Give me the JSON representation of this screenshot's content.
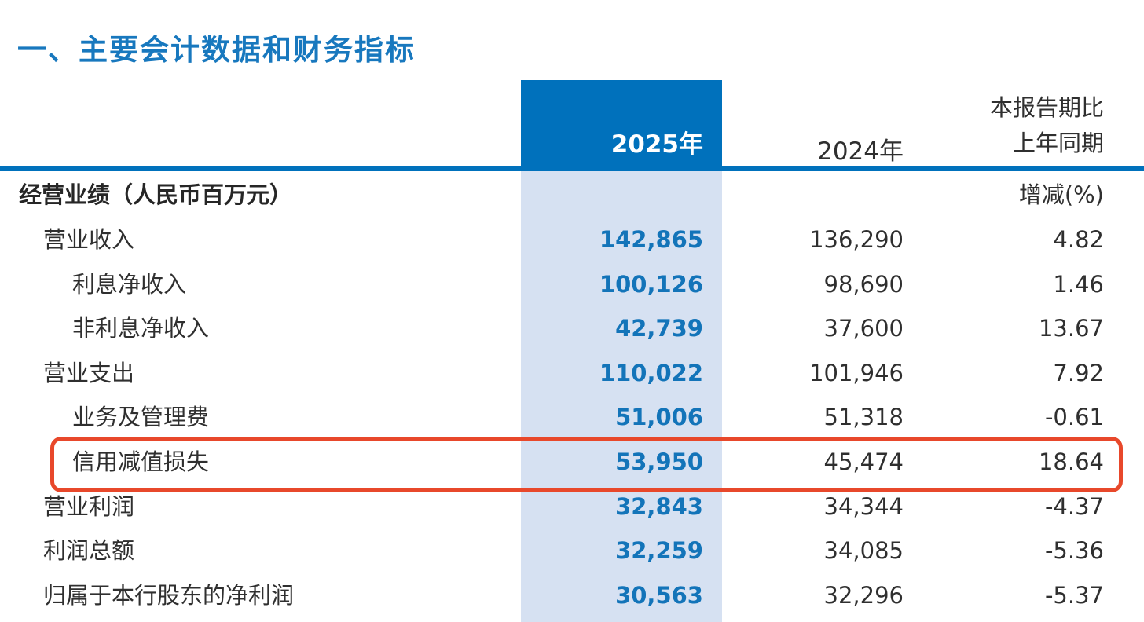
{
  "title": "一、主要会计数据和财务指标",
  "table": {
    "header": {
      "col_2025": "2025年",
      "col_2024": "2024年",
      "compare_line1": "本报告期比",
      "compare_line2": "上年同期",
      "change_header": "增减(%)"
    },
    "section": {
      "label": "经营业绩（人民币百万元）"
    },
    "rows": [
      {
        "label": "营业收入",
        "v2025": "142,865",
        "v2024": "136,290",
        "change": "4.82"
      },
      {
        "label": "利息净收入",
        "v2025": "100,126",
        "v2024": "98,690",
        "change": "1.46"
      },
      {
        "label": "非利息净收入",
        "v2025": "42,739",
        "v2024": "37,600",
        "change": "13.67"
      },
      {
        "label": "营业支出",
        "v2025": "110,022",
        "v2024": "101,946",
        "change": "7.92"
      },
      {
        "label": "业务及管理费",
        "v2025": "51,006",
        "v2024": "51,318",
        "change": "-0.61"
      },
      {
        "label": "信用减值损失",
        "v2025": "53,950",
        "v2024": "45,474",
        "change": "18.64"
      },
      {
        "label": "营业利润",
        "v2025": "32,843",
        "v2024": "34,344",
        "change": "-4.37"
      },
      {
        "label": "利润总额",
        "v2025": "32,259",
        "v2024": "34,085",
        "change": "-5.36"
      },
      {
        "label": "归属于本行股东的净利润",
        "v2025": "30,563",
        "v2024": "32,296",
        "change": "-5.37"
      }
    ],
    "highlighted_row_label": "信用减值损失"
  },
  "colors": {
    "title_blue": "#1878BE",
    "header_blue": "#0071BC",
    "column_light_blue": "#D6E1F2",
    "value_blue": "#1374B9",
    "body_text": "#2F2F2F",
    "highlight_red": "#E8482B"
  }
}
